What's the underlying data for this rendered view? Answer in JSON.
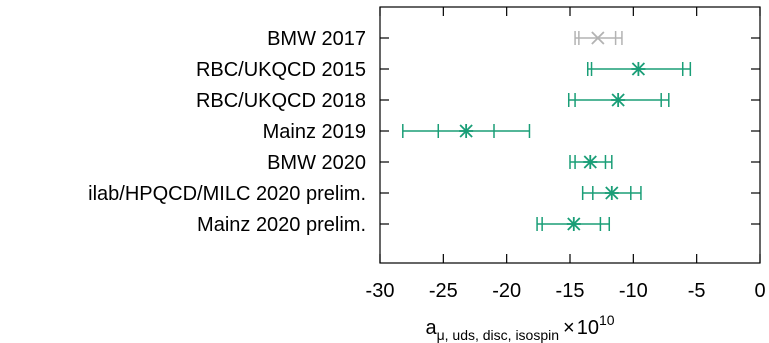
{
  "chart_data": {
    "type": "scatter",
    "title": "",
    "xlabel": {
      "base": "a",
      "subscript": "μ, uds, disc, isospin",
      "times": "×",
      "power_base": "10",
      "exponent": "10"
    },
    "ylabel": "",
    "xlim": [
      -30,
      0
    ],
    "xticks": [
      "-30",
      "-25",
      "-20",
      "-15",
      "-10",
      "-5",
      "0"
    ],
    "xtick_values": [
      -30,
      -25,
      -20,
      -15,
      -10,
      -5,
      0
    ],
    "grid": false,
    "colors": {
      "green": "#1a9e77",
      "grey": "#b3b3b3"
    },
    "points": [
      {
        "label": "BMW 2017",
        "value": -12.8,
        "stat_low": -14.3,
        "stat_high": -11.4,
        "total_low": -14.6,
        "total_high": -10.9,
        "color": "#b3b3b3"
      },
      {
        "label": "RBC/UKQCD 2015",
        "value": -9.6,
        "stat_low": -13.3,
        "stat_high": -6.1,
        "total_low": -13.6,
        "total_high": -5.5,
        "color": "#1a9e77"
      },
      {
        "label": "RBC/UKQCD 2018",
        "value": -11.2,
        "stat_low": -14.6,
        "stat_high": -7.8,
        "total_low": -15.1,
        "total_high": -7.2,
        "color": "#1a9e77"
      },
      {
        "label": "Mainz 2019",
        "value": -23.2,
        "stat_low": -25.4,
        "stat_high": -21.0,
        "total_low": -28.2,
        "total_high": -18.2,
        "color": "#1a9e77"
      },
      {
        "label": "BMW 2020",
        "value": -13.4,
        "stat_low": -14.6,
        "stat_high": -12.2,
        "total_low": -15.0,
        "total_high": -11.7,
        "color": "#1a9e77"
      },
      {
        "label": "ilab/HPQCD/MILC 2020 prelim.",
        "value": -11.7,
        "stat_low": -13.2,
        "stat_high": -10.2,
        "total_low": -14.0,
        "total_high": -9.4,
        "color": "#1a9e77"
      },
      {
        "label": "Mainz 2020 prelim.",
        "value": -14.7,
        "stat_low": -17.2,
        "stat_high": -12.6,
        "total_low": -17.6,
        "total_high": -11.9,
        "color": "#1a9e77"
      }
    ]
  }
}
